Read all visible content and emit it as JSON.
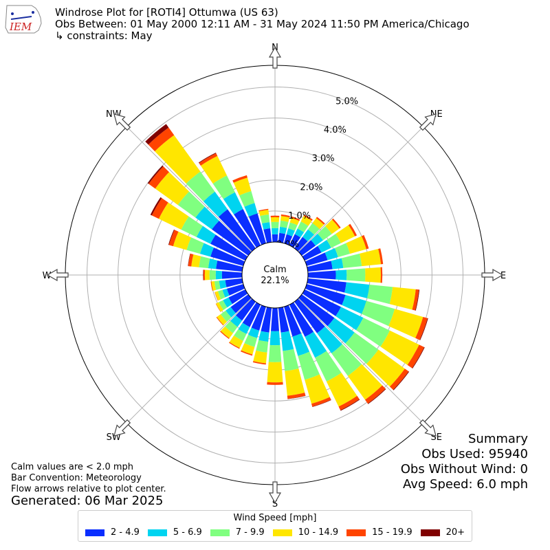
{
  "header": {
    "title": "Windrose Plot for [ROTI4] Ottumwa (US 63)",
    "obs_between": "Obs Between: 01 May 2000 12:11 AM - 31 May 2024 11:50 PM America/Chicago",
    "constraints": "↳ constraints: May"
  },
  "logo": {
    "text": "IEM",
    "color": "#cc2222"
  },
  "notes": {
    "calm": "Calm values are < 2.0 mph",
    "convention": "Bar Convention: Meteorology",
    "flow": "Flow arrows relative to plot center.",
    "generated": "Generated: 06 Mar 2025"
  },
  "summary": {
    "title": "Summary",
    "obs_used": "Obs Used: 95940",
    "obs_without_wind": "Obs Without Wind: 0",
    "avg_speed": "Avg Speed: 6.0 mph"
  },
  "chart_data": {
    "type": "windrose",
    "calm_label": "Calm",
    "calm_percent": "22.1%",
    "radial_ticks": [
      0,
      1,
      2,
      3,
      4,
      5
    ],
    "radial_tick_labels": [
      "0.0%",
      "1.0%",
      "2.0%",
      "3.0%",
      "4.0%",
      "5.0%"
    ],
    "rmax": 5.7,
    "direction_labels": [
      {
        "label": "N",
        "angle": 0
      },
      {
        "label": "NE",
        "angle": 45
      },
      {
        "label": "E",
        "angle": 90
      },
      {
        "label": "SE",
        "angle": 135
      },
      {
        "label": "S",
        "angle": 180
      },
      {
        "label": "SW",
        "angle": 225
      },
      {
        "label": "W",
        "angle": 270
      },
      {
        "label": "NW",
        "angle": 315
      }
    ],
    "directions_deg": [
      0,
      10,
      20,
      30,
      40,
      50,
      60,
      70,
      80,
      90,
      100,
      110,
      120,
      130,
      140,
      150,
      160,
      170,
      180,
      190,
      200,
      210,
      220,
      230,
      240,
      250,
      260,
      270,
      280,
      290,
      300,
      310,
      320,
      330,
      340,
      350
    ],
    "legend_title": "Wind Speed [mph]",
    "bins": [
      {
        "label": "2 - 4.9",
        "color": "#0a2eff"
      },
      {
        "label": "5 - 6.9",
        "color": "#00d4f0"
      },
      {
        "label": "7 - 9.9",
        "color": "#80ff80"
      },
      {
        "label": "10 - 14.9",
        "color": "#ffe600"
      },
      {
        "label": "15 - 19.9",
        "color": "#ff4400"
      },
      {
        "label": "20+",
        "color": "#800000"
      }
    ],
    "cumulative_percent": [
      [
        0.25,
        0.45,
        0.65,
        0.8,
        0.85,
        0.85
      ],
      [
        0.3,
        0.5,
        0.7,
        0.85,
        0.9,
        0.9
      ],
      [
        0.3,
        0.5,
        0.7,
        0.85,
        0.9,
        0.9
      ],
      [
        0.4,
        0.6,
        0.85,
        1.05,
        1.1,
        1.1
      ],
      [
        0.45,
        0.75,
        1.0,
        1.2,
        1.25,
        1.25
      ],
      [
        0.55,
        0.85,
        1.2,
        1.5,
        1.55,
        1.55
      ],
      [
        0.6,
        0.95,
        1.3,
        1.8,
        1.87,
        1.87
      ],
      [
        0.7,
        1.05,
        1.45,
        2.0,
        2.08,
        2.08
      ],
      [
        0.8,
        1.15,
        1.75,
        2.37,
        2.44,
        2.44
      ],
      [
        0.9,
        1.25,
        1.85,
        2.35,
        2.4,
        2.4
      ],
      [
        1.25,
        2.0,
        2.75,
        3.5,
        3.6,
        3.62
      ],
      [
        1.3,
        2.0,
        2.95,
        3.9,
        4.05,
        4.07
      ],
      [
        1.3,
        2.1,
        3.05,
        4.1,
        4.28,
        4.3
      ],
      [
        1.3,
        2.1,
        3.05,
        4.1,
        4.25,
        4.27
      ],
      [
        1.25,
        2.05,
        2.95,
        3.9,
        4.05,
        4.07
      ],
      [
        1.15,
        1.9,
        2.75,
        3.65,
        3.78,
        3.8
      ],
      [
        1.0,
        1.65,
        2.45,
        3.25,
        3.35,
        3.36
      ],
      [
        0.8,
        1.4,
        2.05,
        2.85,
        2.95,
        2.96
      ],
      [
        0.75,
        1.2,
        1.75,
        2.4,
        2.48,
        2.48
      ],
      [
        0.8,
        1.1,
        1.45,
        1.8,
        1.84,
        1.84
      ],
      [
        0.8,
        1.05,
        1.35,
        1.6,
        1.64,
        1.64
      ],
      [
        0.8,
        1.05,
        1.3,
        1.55,
        1.58,
        1.58
      ],
      [
        0.75,
        1.0,
        1.25,
        1.45,
        1.48,
        1.48
      ],
      [
        0.7,
        0.9,
        1.1,
        1.25,
        1.27,
        1.27
      ],
      [
        0.6,
        0.8,
        0.95,
        1.05,
        1.06,
        1.06
      ],
      [
        0.55,
        0.7,
        0.85,
        0.95,
        0.96,
        0.96
      ],
      [
        0.55,
        0.75,
        0.9,
        1.0,
        1.02,
        1.02
      ],
      [
        0.65,
        0.85,
        1.05,
        1.2,
        1.25,
        1.26
      ],
      [
        0.85,
        1.1,
        1.4,
        1.65,
        1.75,
        1.76
      ],
      [
        1.1,
        1.45,
        1.9,
        2.35,
        2.49,
        2.51
      ],
      [
        1.25,
        1.75,
        2.3,
        3.1,
        3.35,
        3.4
      ],
      [
        1.45,
        2.1,
        2.8,
        3.7,
        3.96,
        4.0
      ],
      [
        1.55,
        2.25,
        3.05,
        4.5,
        4.8,
        4.94
      ],
      [
        1.3,
        1.9,
        2.5,
        3.2,
        3.3,
        3.32
      ],
      [
        1.0,
        1.35,
        1.75,
        2.2,
        2.28,
        2.28
      ],
      [
        0.45,
        0.65,
        0.9,
        1.05,
        1.08,
        1.08
      ]
    ]
  }
}
